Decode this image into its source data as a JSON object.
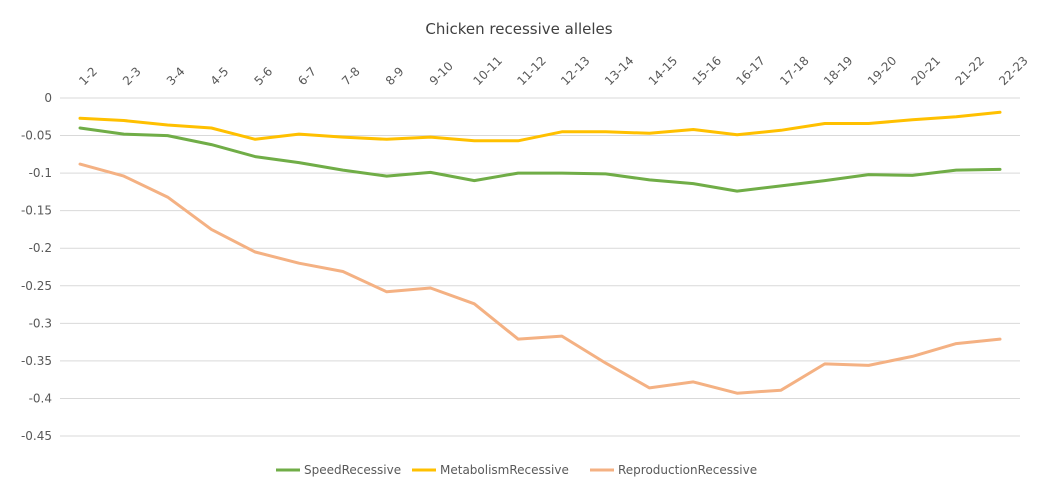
{
  "chart_data": {
    "type": "line",
    "title": "Chicken recessive alleles",
    "xlabel": "",
    "ylabel": "",
    "categories": [
      "1-2",
      "2-3",
      "3-4",
      "4-5",
      "5-6",
      "6-7",
      "7-8",
      "8-9",
      "9-10",
      "10-11",
      "11-12",
      "12-13",
      "13-14",
      "14-15",
      "15-16",
      "16-17",
      "17-18",
      "18-19",
      "19-20",
      "20-21",
      "21-22",
      "22-23"
    ],
    "yticks": [
      "0",
      "-0.05",
      "-0.1",
      "-0.15",
      "-0.2",
      "-0.25",
      "-0.3",
      "-0.35",
      "-0.4",
      "-0.45"
    ],
    "ytick_values": [
      0,
      -0.05,
      -0.1,
      -0.15,
      -0.2,
      -0.25,
      -0.3,
      -0.35,
      -0.4,
      -0.45
    ],
    "ylim": [
      -0.45,
      0
    ],
    "grid": true,
    "legend_position": "bottom",
    "series": [
      {
        "name": "SpeedRecessive",
        "color": "#70ad47",
        "values": [
          -0.04,
          -0.048,
          -0.05,
          -0.062,
          -0.078,
          -0.086,
          -0.096,
          -0.104,
          -0.099,
          -0.11,
          -0.1,
          -0.1,
          -0.101,
          -0.109,
          -0.114,
          -0.124,
          -0.117,
          -0.11,
          -0.102,
          -0.103,
          -0.096,
          -0.095
        ]
      },
      {
        "name": "MetabolismRecessive",
        "color": "#ffc000",
        "values": [
          -0.027,
          -0.03,
          -0.036,
          -0.04,
          -0.055,
          -0.048,
          -0.052,
          -0.055,
          -0.052,
          -0.057,
          -0.057,
          -0.045,
          -0.045,
          -0.047,
          -0.042,
          -0.049,
          -0.043,
          -0.034,
          -0.034,
          -0.029,
          -0.025,
          -0.019
        ]
      },
      {
        "name": "ReproductionRecessive",
        "color": "#f4b183",
        "values": [
          -0.088,
          -0.104,
          -0.132,
          -0.175,
          -0.205,
          -0.22,
          -0.231,
          -0.258,
          -0.253,
          -0.274,
          -0.321,
          -0.317,
          -0.353,
          -0.386,
          -0.378,
          -0.393,
          -0.389,
          -0.354,
          -0.356,
          -0.344,
          -0.327,
          -0.321
        ]
      }
    ]
  }
}
